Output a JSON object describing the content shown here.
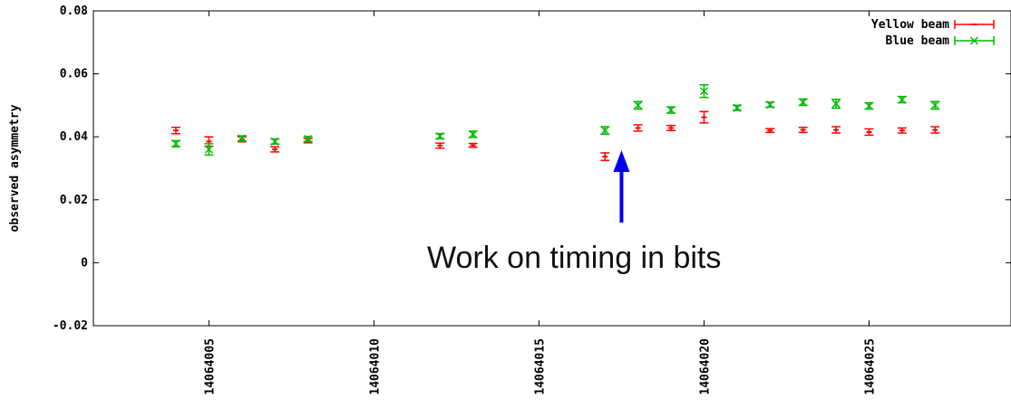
{
  "chart_data": {
    "type": "scatter",
    "title": "",
    "xlabel": "",
    "ylabel": "observed asymmetry",
    "xlim": [
      14064001.5,
      14064029.3
    ],
    "ylim": [
      -0.02,
      0.08
    ],
    "x_ticks": [
      14064005,
      14064010,
      14064015,
      14064020,
      14064025
    ],
    "y_ticks": [
      {
        "value": 0.08,
        "label": "0.08"
      },
      {
        "value": 0.06,
        "label": "0.06"
      },
      {
        "value": 0.04,
        "label": "0.04"
      },
      {
        "value": 0.02,
        "label": "0.02"
      },
      {
        "value": 0,
        "label": "0"
      },
      {
        "value": -0.02,
        "label": "-0.02"
      }
    ],
    "grid": false,
    "legend_position": "top-right",
    "series": [
      {
        "name": "Yellow beam",
        "color": "#ff0000",
        "marker": "plus",
        "points": [
          {
            "x": 14064004,
            "y": 0.042,
            "err": 0.001
          },
          {
            "x": 14064005,
            "y": 0.0385,
            "err": 0.0015
          },
          {
            "x": 14064006,
            "y": 0.0392,
            "err": 0.0008
          },
          {
            "x": 14064007,
            "y": 0.036,
            "err": 0.0008
          },
          {
            "x": 14064008,
            "y": 0.0388,
            "err": 0.0007
          },
          {
            "x": 14064012,
            "y": 0.0372,
            "err": 0.0008
          },
          {
            "x": 14064013,
            "y": 0.0373,
            "err": 0.0006
          },
          {
            "x": 14064017,
            "y": 0.0337,
            "err": 0.0012
          },
          {
            "x": 14064018,
            "y": 0.0428,
            "err": 0.001
          },
          {
            "x": 14064019,
            "y": 0.0428,
            "err": 0.0008
          },
          {
            "x": 14064020,
            "y": 0.0462,
            "err": 0.0018
          },
          {
            "x": 14064022,
            "y": 0.042,
            "err": 0.0006
          },
          {
            "x": 14064023,
            "y": 0.0422,
            "err": 0.0008
          },
          {
            "x": 14064024,
            "y": 0.0422,
            "err": 0.001
          },
          {
            "x": 14064025,
            "y": 0.0415,
            "err": 0.001
          },
          {
            "x": 14064026,
            "y": 0.042,
            "err": 0.0008
          },
          {
            "x": 14064027,
            "y": 0.0422,
            "err": 0.001
          }
        ]
      },
      {
        "name": "Blue beam",
        "color": "#00bb00",
        "marker": "x",
        "points": [
          {
            "x": 14064004,
            "y": 0.0378,
            "err": 0.001
          },
          {
            "x": 14064005,
            "y": 0.036,
            "err": 0.0018
          },
          {
            "x": 14064006,
            "y": 0.0395,
            "err": 0.0008
          },
          {
            "x": 14064007,
            "y": 0.0385,
            "err": 0.0008
          },
          {
            "x": 14064008,
            "y": 0.0393,
            "err": 0.0008
          },
          {
            "x": 14064012,
            "y": 0.0402,
            "err": 0.0008
          },
          {
            "x": 14064013,
            "y": 0.0408,
            "err": 0.001
          },
          {
            "x": 14064017,
            "y": 0.042,
            "err": 0.0012
          },
          {
            "x": 14064018,
            "y": 0.05,
            "err": 0.0012
          },
          {
            "x": 14064019,
            "y": 0.0485,
            "err": 0.001
          },
          {
            "x": 14064020,
            "y": 0.0545,
            "err": 0.002
          },
          {
            "x": 14064021,
            "y": 0.0492,
            "err": 0.0008
          },
          {
            "x": 14064022,
            "y": 0.0502,
            "err": 0.0008
          },
          {
            "x": 14064023,
            "y": 0.051,
            "err": 0.001
          },
          {
            "x": 14064024,
            "y": 0.0505,
            "err": 0.0014
          },
          {
            "x": 14064025,
            "y": 0.0498,
            "err": 0.001
          },
          {
            "x": 14064026,
            "y": 0.0518,
            "err": 0.001
          },
          {
            "x": 14064027,
            "y": 0.05,
            "err": 0.0012
          }
        ]
      }
    ],
    "annotation": {
      "text": "Work on timing in bits",
      "arrow_color": "#0000ee",
      "arrow_target_x": 14064017.5
    }
  }
}
